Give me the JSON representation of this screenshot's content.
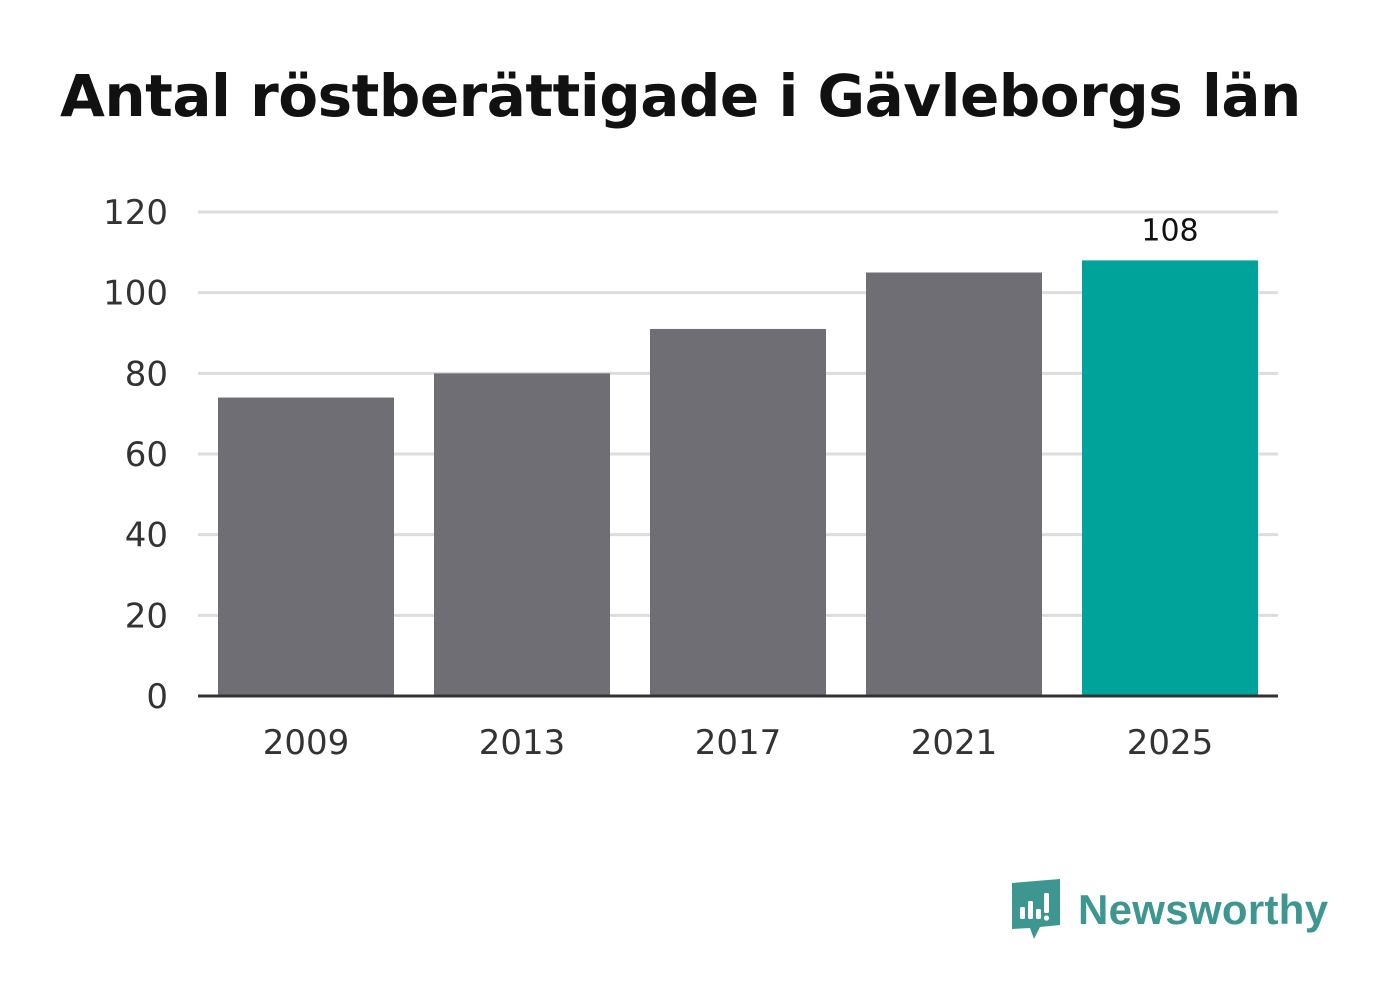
{
  "title": "Antal röstberättigade i Gävleborgs län",
  "brand": {
    "name": "Newsworthy",
    "icon": "newsworthy-logo-icon",
    "color": "#3d9690"
  },
  "colors": {
    "bar": "#6f6e74",
    "highlight": "#00a399",
    "grid": "#dddddd",
    "axis": "#333333"
  },
  "chart_data": {
    "type": "bar",
    "categories": [
      "2009",
      "2013",
      "2017",
      "2021",
      "2025"
    ],
    "values": [
      74,
      80,
      91,
      105,
      108
    ],
    "highlight_index": 4,
    "data_labels": [
      "",
      "",
      "",
      "",
      "108"
    ],
    "title": "Antal röstberättigade i Gävleborgs län",
    "xlabel": "",
    "ylabel": "",
    "ylim": [
      0,
      120
    ],
    "yticks": [
      0,
      20,
      40,
      60,
      80,
      100,
      120
    ],
    "grid": true,
    "legend": "none"
  }
}
